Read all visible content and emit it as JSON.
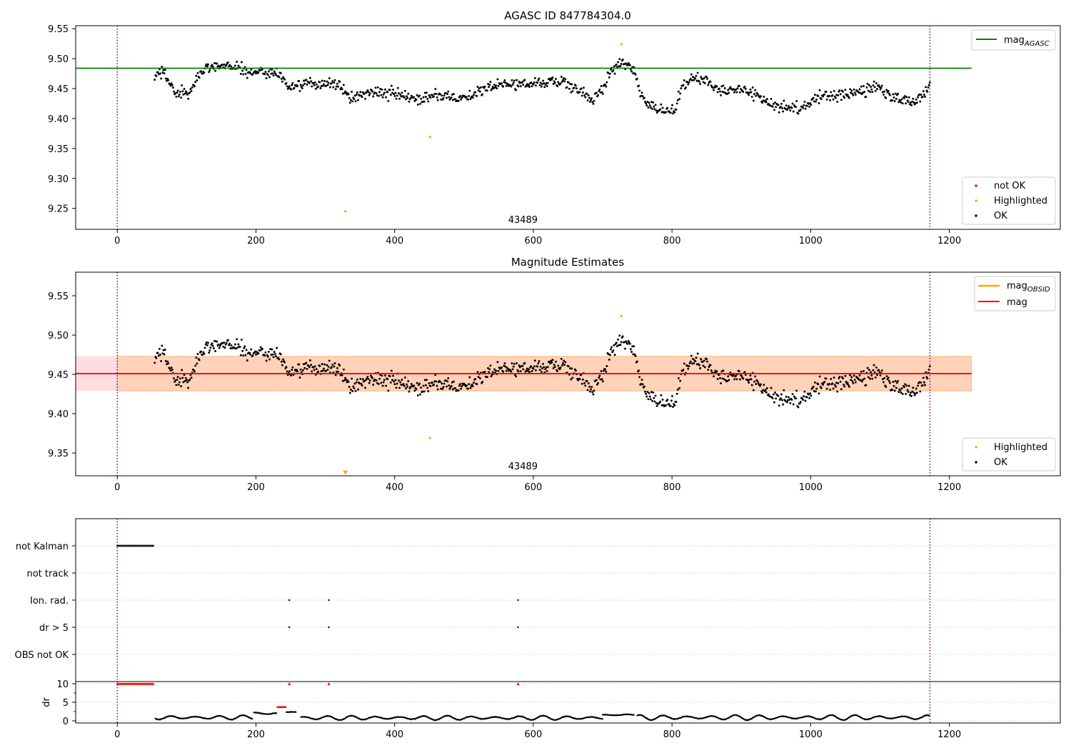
{
  "chart_data": [
    {
      "type": "scatter",
      "title": "AGASC ID 847784304.0",
      "xlim": [
        -60,
        1360
      ],
      "ylim": [
        9.215,
        9.555
      ],
      "xticks": [
        0,
        200,
        400,
        600,
        800,
        1000,
        1200
      ],
      "yticks": [
        9.25,
        9.3,
        9.35,
        9.4,
        9.45,
        9.5,
        9.55
      ],
      "ytick_labels": [
        "9.25",
        "9.30",
        "9.35",
        "9.40",
        "9.45",
        "9.50",
        "9.55"
      ],
      "obsid_label": "43489",
      "obsid_label_x": 585,
      "obs_boundaries": [
        0,
        1172
      ],
      "mag_agasc": 9.484,
      "mag_line_xrange": [
        -60,
        1232
      ],
      "legend_upper": [
        {
          "label": "mag",
          "subscript": "AGASC",
          "color": "#008000"
        }
      ],
      "legend_lower": [
        {
          "label": "not OK",
          "color": "#ff0000"
        },
        {
          "label": "Highlighted",
          "color": "#ffa500"
        },
        {
          "label": "OK",
          "color": "#000000"
        }
      ],
      "highlighted": [
        {
          "x": 727,
          "y": 9.524
        },
        {
          "x": 451,
          "y": 9.369
        },
        {
          "x": 329,
          "y": 9.245
        }
      ],
      "ok_trend": [
        [
          55,
          9.475
        ],
        [
          65,
          9.478
        ],
        [
          75,
          9.462
        ],
        [
          85,
          9.44
        ],
        [
          95,
          9.443
        ],
        [
          105,
          9.44
        ],
        [
          115,
          9.468
        ],
        [
          130,
          9.488
        ],
        [
          150,
          9.489
        ],
        [
          170,
          9.487
        ],
        [
          190,
          9.477
        ],
        [
          210,
          9.478
        ],
        [
          230,
          9.475
        ],
        [
          242,
          9.465
        ],
        [
          250,
          9.45
        ],
        [
          270,
          9.459
        ],
        [
          290,
          9.455
        ],
        [
          310,
          9.462
        ],
        [
          325,
          9.45
        ],
        [
          335,
          9.432
        ],
        [
          355,
          9.442
        ],
        [
          375,
          9.445
        ],
        [
          395,
          9.441
        ],
        [
          410,
          9.438
        ],
        [
          425,
          9.432
        ],
        [
          440,
          9.428
        ],
        [
          455,
          9.442
        ],
        [
          475,
          9.438
        ],
        [
          500,
          9.435
        ],
        [
          525,
          9.445
        ],
        [
          550,
          9.458
        ],
        [
          575,
          9.457
        ],
        [
          595,
          9.458
        ],
        [
          615,
          9.462
        ],
        [
          640,
          9.462
        ],
        [
          665,
          9.448
        ],
        [
          685,
          9.43
        ],
        [
          700,
          9.448
        ],
        [
          712,
          9.482
        ],
        [
          730,
          9.496
        ],
        [
          745,
          9.48
        ],
        [
          755,
          9.44
        ],
        [
          770,
          9.423
        ],
        [
          790,
          9.412
        ],
        [
          805,
          9.412
        ],
        [
          815,
          9.455
        ],
        [
          830,
          9.468
        ],
        [
          850,
          9.462
        ],
        [
          870,
          9.448
        ],
        [
          895,
          9.452
        ],
        [
          920,
          9.44
        ],
        [
          940,
          9.425
        ],
        [
          960,
          9.42
        ],
        [
          980,
          9.418
        ],
        [
          1000,
          9.428
        ],
        [
          1020,
          9.44
        ],
        [
          1040,
          9.438
        ],
        [
          1060,
          9.442
        ],
        [
          1080,
          9.445
        ],
        [
          1095,
          9.455
        ],
        [
          1110,
          9.44
        ],
        [
          1130,
          9.43
        ],
        [
          1150,
          9.428
        ],
        [
          1165,
          9.442
        ],
        [
          1172,
          9.46
        ]
      ]
    },
    {
      "type": "scatter",
      "title": "Magnitude Estimates",
      "xlim": [
        -60,
        1360
      ],
      "ylim": [
        9.321,
        9.58
      ],
      "xticks": [
        0,
        200,
        400,
        600,
        800,
        1000,
        1200
      ],
      "yticks": [
        9.35,
        9.4,
        9.45,
        9.5,
        9.55
      ],
      "ytick_labels": [
        "9.35",
        "9.40",
        "9.45",
        "9.50",
        "9.55"
      ],
      "obsid_label": "43489",
      "obsid_label_x": 585,
      "mag": 9.451,
      "mag_band": [
        9.429,
        9.473
      ],
      "mag_obsid_band": [
        9.429,
        9.473
      ],
      "band_xrange": [
        -60,
        1232
      ],
      "legend_upper": [
        {
          "label": "mag",
          "subscript": "OBSID",
          "color": "#ffa500"
        },
        {
          "label": "mag",
          "subscript": "",
          "color": "#ff0000"
        }
      ],
      "legend_lower": [
        {
          "label": "Highlighted",
          "color": "#ffa500"
        },
        {
          "label": "OK",
          "color": "#000000"
        }
      ],
      "highlighted": [
        {
          "x": 727,
          "y": 9.524
        },
        {
          "x": 451,
          "y": 9.369
        }
      ],
      "offscale_marker": {
        "x": 329,
        "y": 9.325
      }
    },
    {
      "type": "scatter",
      "title": "",
      "xlim": [
        -60,
        1360
      ],
      "xticks": [
        0,
        200,
        400,
        600,
        800,
        1000,
        1200
      ],
      "flag_rows": [
        "not Kalman",
        "not track",
        "Ion. rad.",
        "dr > 5",
        "OBS not OK"
      ],
      "not_kalman_range": [
        0,
        53
      ],
      "ion_rad_times": [
        248,
        305,
        578
      ],
      "dr_gt_5_times": [
        248,
        305,
        578
      ],
      "dr_ylabel": "dr",
      "dr_yticks": [
        0,
        5,
        10
      ],
      "dr_red_at_10": [
        [
          0,
          53
        ],
        [
          248,
          248
        ],
        [
          305,
          305
        ],
        [
          578,
          578
        ]
      ],
      "dr_red_segment": {
        "x": [
          231,
          243
        ],
        "y": 3.7
      },
      "dr_segments": [
        {
          "x": [
            55,
            195
          ],
          "center": 0.9,
          "amplitude": 0.6
        },
        {
          "x": [
            197,
            230
          ],
          "center": 2.0,
          "amplitude": 0.25
        },
        {
          "x": [
            244,
            258
          ],
          "center": 2.3,
          "amplitude": 0.25
        },
        {
          "x": [
            265,
            700
          ],
          "center": 0.8,
          "amplitude": 0.6
        },
        {
          "x": [
            700,
            745
          ],
          "center": 1.6,
          "amplitude": 0.2
        },
        {
          "x": [
            750,
            1172
          ],
          "center": 0.9,
          "amplitude": 0.7
        }
      ]
    }
  ]
}
